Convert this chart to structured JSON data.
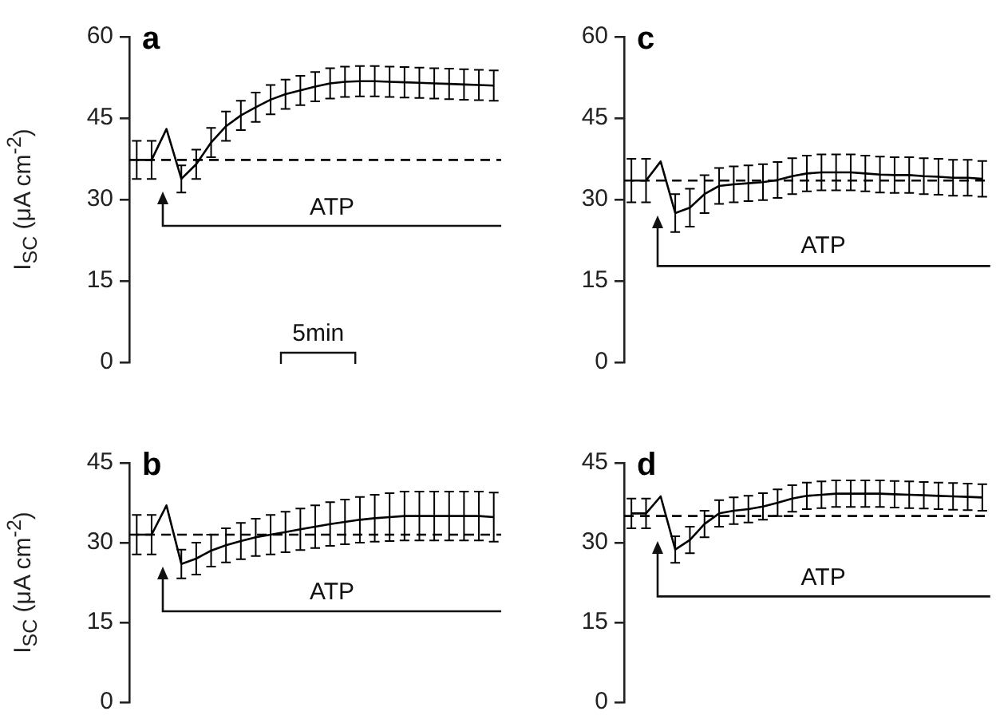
{
  "chart_data": [
    {
      "type": "line",
      "title": "a",
      "ylabel": "I$_{SC}$ (μA cm$^{-2}$)",
      "categories": [
        null,
        null,
        null,
        null,
        null,
        null,
        null,
        null,
        null,
        null,
        null,
        null,
        null,
        null,
        null,
        null,
        null,
        null,
        null,
        null,
        null,
        null,
        null,
        null,
        null
      ],
      "series": [
        {
          "color": "#000000",
          "values": [
            37.3,
            37.3,
            43,
            33.8,
            36.5,
            40.5,
            43.5,
            45.5,
            47,
            48.4,
            49.4,
            50.1,
            50.8,
            51.4,
            51.7,
            51.8,
            51.8,
            51.7,
            51.6,
            51.5,
            51.4,
            51.3,
            51.2,
            51.1,
            51
          ],
          "errors": [
            3.5,
            3.5,
            null,
            2.5,
            2.7,
            2.7,
            2.7,
            2.7,
            2.7,
            2.7,
            2.7,
            2.7,
            2.7,
            2.8,
            2.8,
            2.8,
            2.8,
            2.8,
            2.8,
            2.8,
            2.8,
            2.8,
            2.8,
            2.8,
            2.8
          ]
        }
      ],
      "ylim": [
        0,
        60
      ],
      "yticks": [
        0,
        15,
        30,
        45,
        60
      ],
      "ref_lines": [
        {
          "axis": "y",
          "value": 37.3,
          "line_style": "dashed",
          "color": "#000000"
        }
      ],
      "annotations": [
        "ATP",
        "5min"
      ],
      "marker": "none",
      "line_style": "solid",
      "tick_labels": "y"
    },
    {
      "type": "line",
      "title": "c",
      "categories": [
        null,
        null,
        null,
        null,
        null,
        null,
        null,
        null,
        null,
        null,
        null,
        null,
        null,
        null,
        null,
        null,
        null,
        null,
        null,
        null,
        null,
        null,
        null,
        null,
        null
      ],
      "series": [
        {
          "color": "#000000",
          "values": [
            33.5,
            33.5,
            37,
            27.5,
            28.5,
            31,
            32.5,
            32.8,
            33,
            33.2,
            33.6,
            34.3,
            34.8,
            35,
            35,
            35,
            34.8,
            34.6,
            34.5,
            34.5,
            34.3,
            34.2,
            34,
            34,
            33.8
          ],
          "errors": [
            4,
            4,
            null,
            3.5,
            3.5,
            3.5,
            3.3,
            3.3,
            3.3,
            3.3,
            3.3,
            3.3,
            3.3,
            3.3,
            3.3,
            3.3,
            3.3,
            3.3,
            3.3,
            3.3,
            3.3,
            3.3,
            3.3,
            3.3,
            3.3
          ]
        }
      ],
      "ylim": [
        0,
        60
      ],
      "yticks": [
        0,
        15,
        30,
        45,
        60
      ],
      "ref_lines": [
        {
          "axis": "y",
          "value": 33.5,
          "line_style": "dashed",
          "color": "#000000"
        }
      ],
      "annotations": [
        "ATP"
      ],
      "marker": "none",
      "line_style": "solid",
      "tick_labels": "y"
    },
    {
      "type": "line",
      "title": "b",
      "ylabel": "I$_{SC}$ (μA cm$^{-2}$)",
      "categories": [
        null,
        null,
        null,
        null,
        null,
        null,
        null,
        null,
        null,
        null,
        null,
        null,
        null,
        null,
        null,
        null,
        null,
        null,
        null,
        null,
        null,
        null,
        null,
        null,
        null
      ],
      "series": [
        {
          "color": "#000000",
          "values": [
            31.5,
            31.5,
            37,
            26,
            27,
            28.5,
            29.5,
            30.3,
            31,
            31.5,
            32,
            32.5,
            33,
            33.5,
            33.9,
            34.3,
            34.6,
            34.8,
            35,
            35,
            35,
            35,
            35,
            35,
            34.8
          ],
          "errors": [
            3.7,
            3.7,
            null,
            2.7,
            3,
            3,
            3.2,
            3.4,
            3.5,
            3.7,
            3.8,
            3.9,
            4,
            4.1,
            4.2,
            4.3,
            4.4,
            4.5,
            4.6,
            4.6,
            4.6,
            4.6,
            4.6,
            4.6,
            4.6
          ]
        }
      ],
      "ylim": [
        0,
        45
      ],
      "yticks": [
        0,
        15,
        30,
        45
      ],
      "ref_lines": [
        {
          "axis": "y",
          "value": 31.5,
          "line_style": "dashed",
          "color": "#000000"
        }
      ],
      "annotations": [
        "ATP"
      ],
      "marker": "none",
      "line_style": "solid",
      "tick_labels": "y"
    },
    {
      "type": "line",
      "title": "d",
      "categories": [
        null,
        null,
        null,
        null,
        null,
        null,
        null,
        null,
        null,
        null,
        null,
        null,
        null,
        null,
        null,
        null,
        null,
        null,
        null,
        null,
        null,
        null,
        null,
        null,
        null
      ],
      "series": [
        {
          "color": "#000000",
          "values": [
            35.5,
            35.5,
            38.7,
            28.7,
            30.5,
            33.5,
            35.5,
            36,
            36.3,
            36.8,
            37.5,
            38.3,
            38.8,
            39,
            39.2,
            39.2,
            39.2,
            39.2,
            39.1,
            39,
            38.9,
            38.8,
            38.7,
            38.6,
            38.5
          ],
          "errors": [
            2.8,
            2.8,
            null,
            2.5,
            2.5,
            2.5,
            2.5,
            2.5,
            2.5,
            2.5,
            2.5,
            2.5,
            2.5,
            2.5,
            2.5,
            2.5,
            2.5,
            2.5,
            2.5,
            2.5,
            2.5,
            2.5,
            2.5,
            2.5,
            2.5
          ]
        }
      ],
      "ylim": [
        0,
        45
      ],
      "yticks": [
        0,
        15,
        30,
        45
      ],
      "ref_lines": [
        {
          "axis": "y",
          "value": 35,
          "line_style": "dashed",
          "color": "#000000"
        }
      ],
      "annotations": [
        "ATP"
      ],
      "marker": "none",
      "line_style": "solid",
      "tick_labels": "y"
    }
  ]
}
